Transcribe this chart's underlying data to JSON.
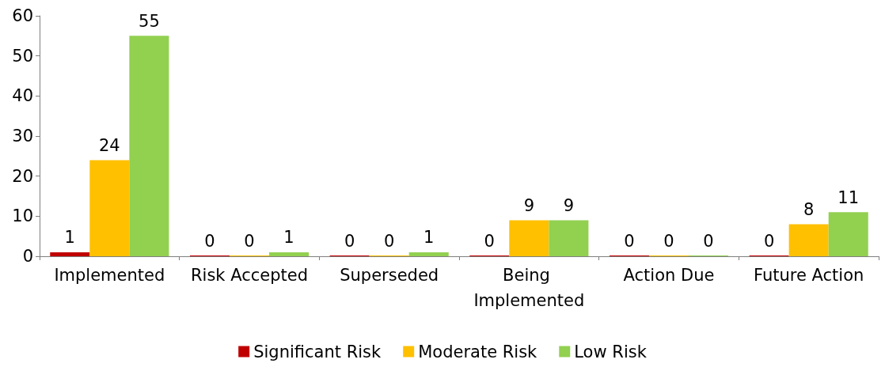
{
  "chart_data": {
    "type": "bar",
    "categories": [
      "Implemented",
      "Risk Accepted",
      "Superseded",
      "Being Implemented",
      "Action Due",
      "Future Action"
    ],
    "series": [
      {
        "name": "Significant Risk",
        "color": "#c00000",
        "values": [
          1,
          0,
          0,
          0,
          0,
          0
        ]
      },
      {
        "name": "Moderate Risk",
        "color": "#ffc000",
        "values": [
          24,
          0,
          0,
          9,
          0,
          8
        ]
      },
      {
        "name": "Low Risk",
        "color": "#92d050",
        "values": [
          55,
          1,
          1,
          9,
          0,
          11
        ]
      }
    ],
    "ylim": [
      0,
      60
    ],
    "yticks": [
      0,
      10,
      20,
      30,
      40,
      50,
      60
    ],
    "grid": false,
    "legend": "bottom",
    "data_labels": true
  }
}
